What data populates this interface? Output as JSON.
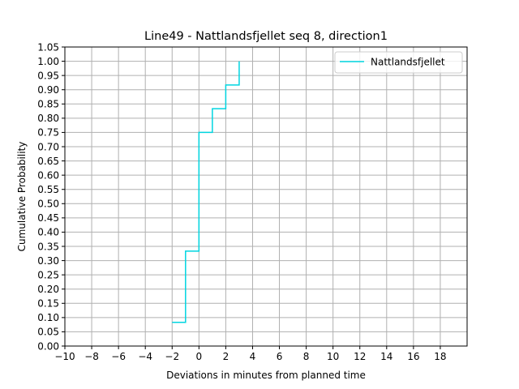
{
  "chart_data": {
    "type": "line",
    "title": "Line49 - Nattlandsfjellet seq 8, direction1",
    "xlabel": "Deviations in minutes from planned time",
    "ylabel": "Cumulative Probability",
    "xlim": [
      -10,
      20
    ],
    "ylim": [
      0,
      1.05
    ],
    "xticks": [
      -10,
      -8,
      -6,
      -4,
      -2,
      0,
      2,
      4,
      6,
      8,
      10,
      12,
      14,
      16,
      18
    ],
    "xtick_labels": [
      "−10",
      "−8",
      "−6",
      "−4",
      "−2",
      "0",
      "2",
      "4",
      "6",
      "8",
      "10",
      "12",
      "14",
      "16",
      "18"
    ],
    "yticks": [
      0,
      0.05,
      0.1,
      0.15,
      0.2,
      0.25,
      0.3,
      0.35,
      0.4,
      0.45,
      0.5,
      0.55,
      0.6,
      0.65,
      0.7,
      0.75,
      0.8,
      0.85,
      0.9,
      0.95,
      1.0,
      1.05
    ],
    "ytick_labels": [
      "0.00",
      "0.05",
      "0.10",
      "0.15",
      "0.20",
      "0.25",
      "0.30",
      "0.35",
      "0.40",
      "0.45",
      "0.50",
      "0.55",
      "0.60",
      "0.65",
      "0.70",
      "0.75",
      "0.80",
      "0.85",
      "0.90",
      "0.95",
      "1.00",
      "1.05"
    ],
    "grid": true,
    "legend_position": "top-right",
    "series": [
      {
        "name": "Nattlandsfjellet",
        "color": "#00d5e0",
        "step": "post",
        "x": [
          -2,
          -1,
          0,
          1,
          2,
          3
        ],
        "y": [
          0.0833,
          0.3333,
          0.75,
          0.8333,
          0.9167,
          1.0
        ]
      }
    ]
  }
}
